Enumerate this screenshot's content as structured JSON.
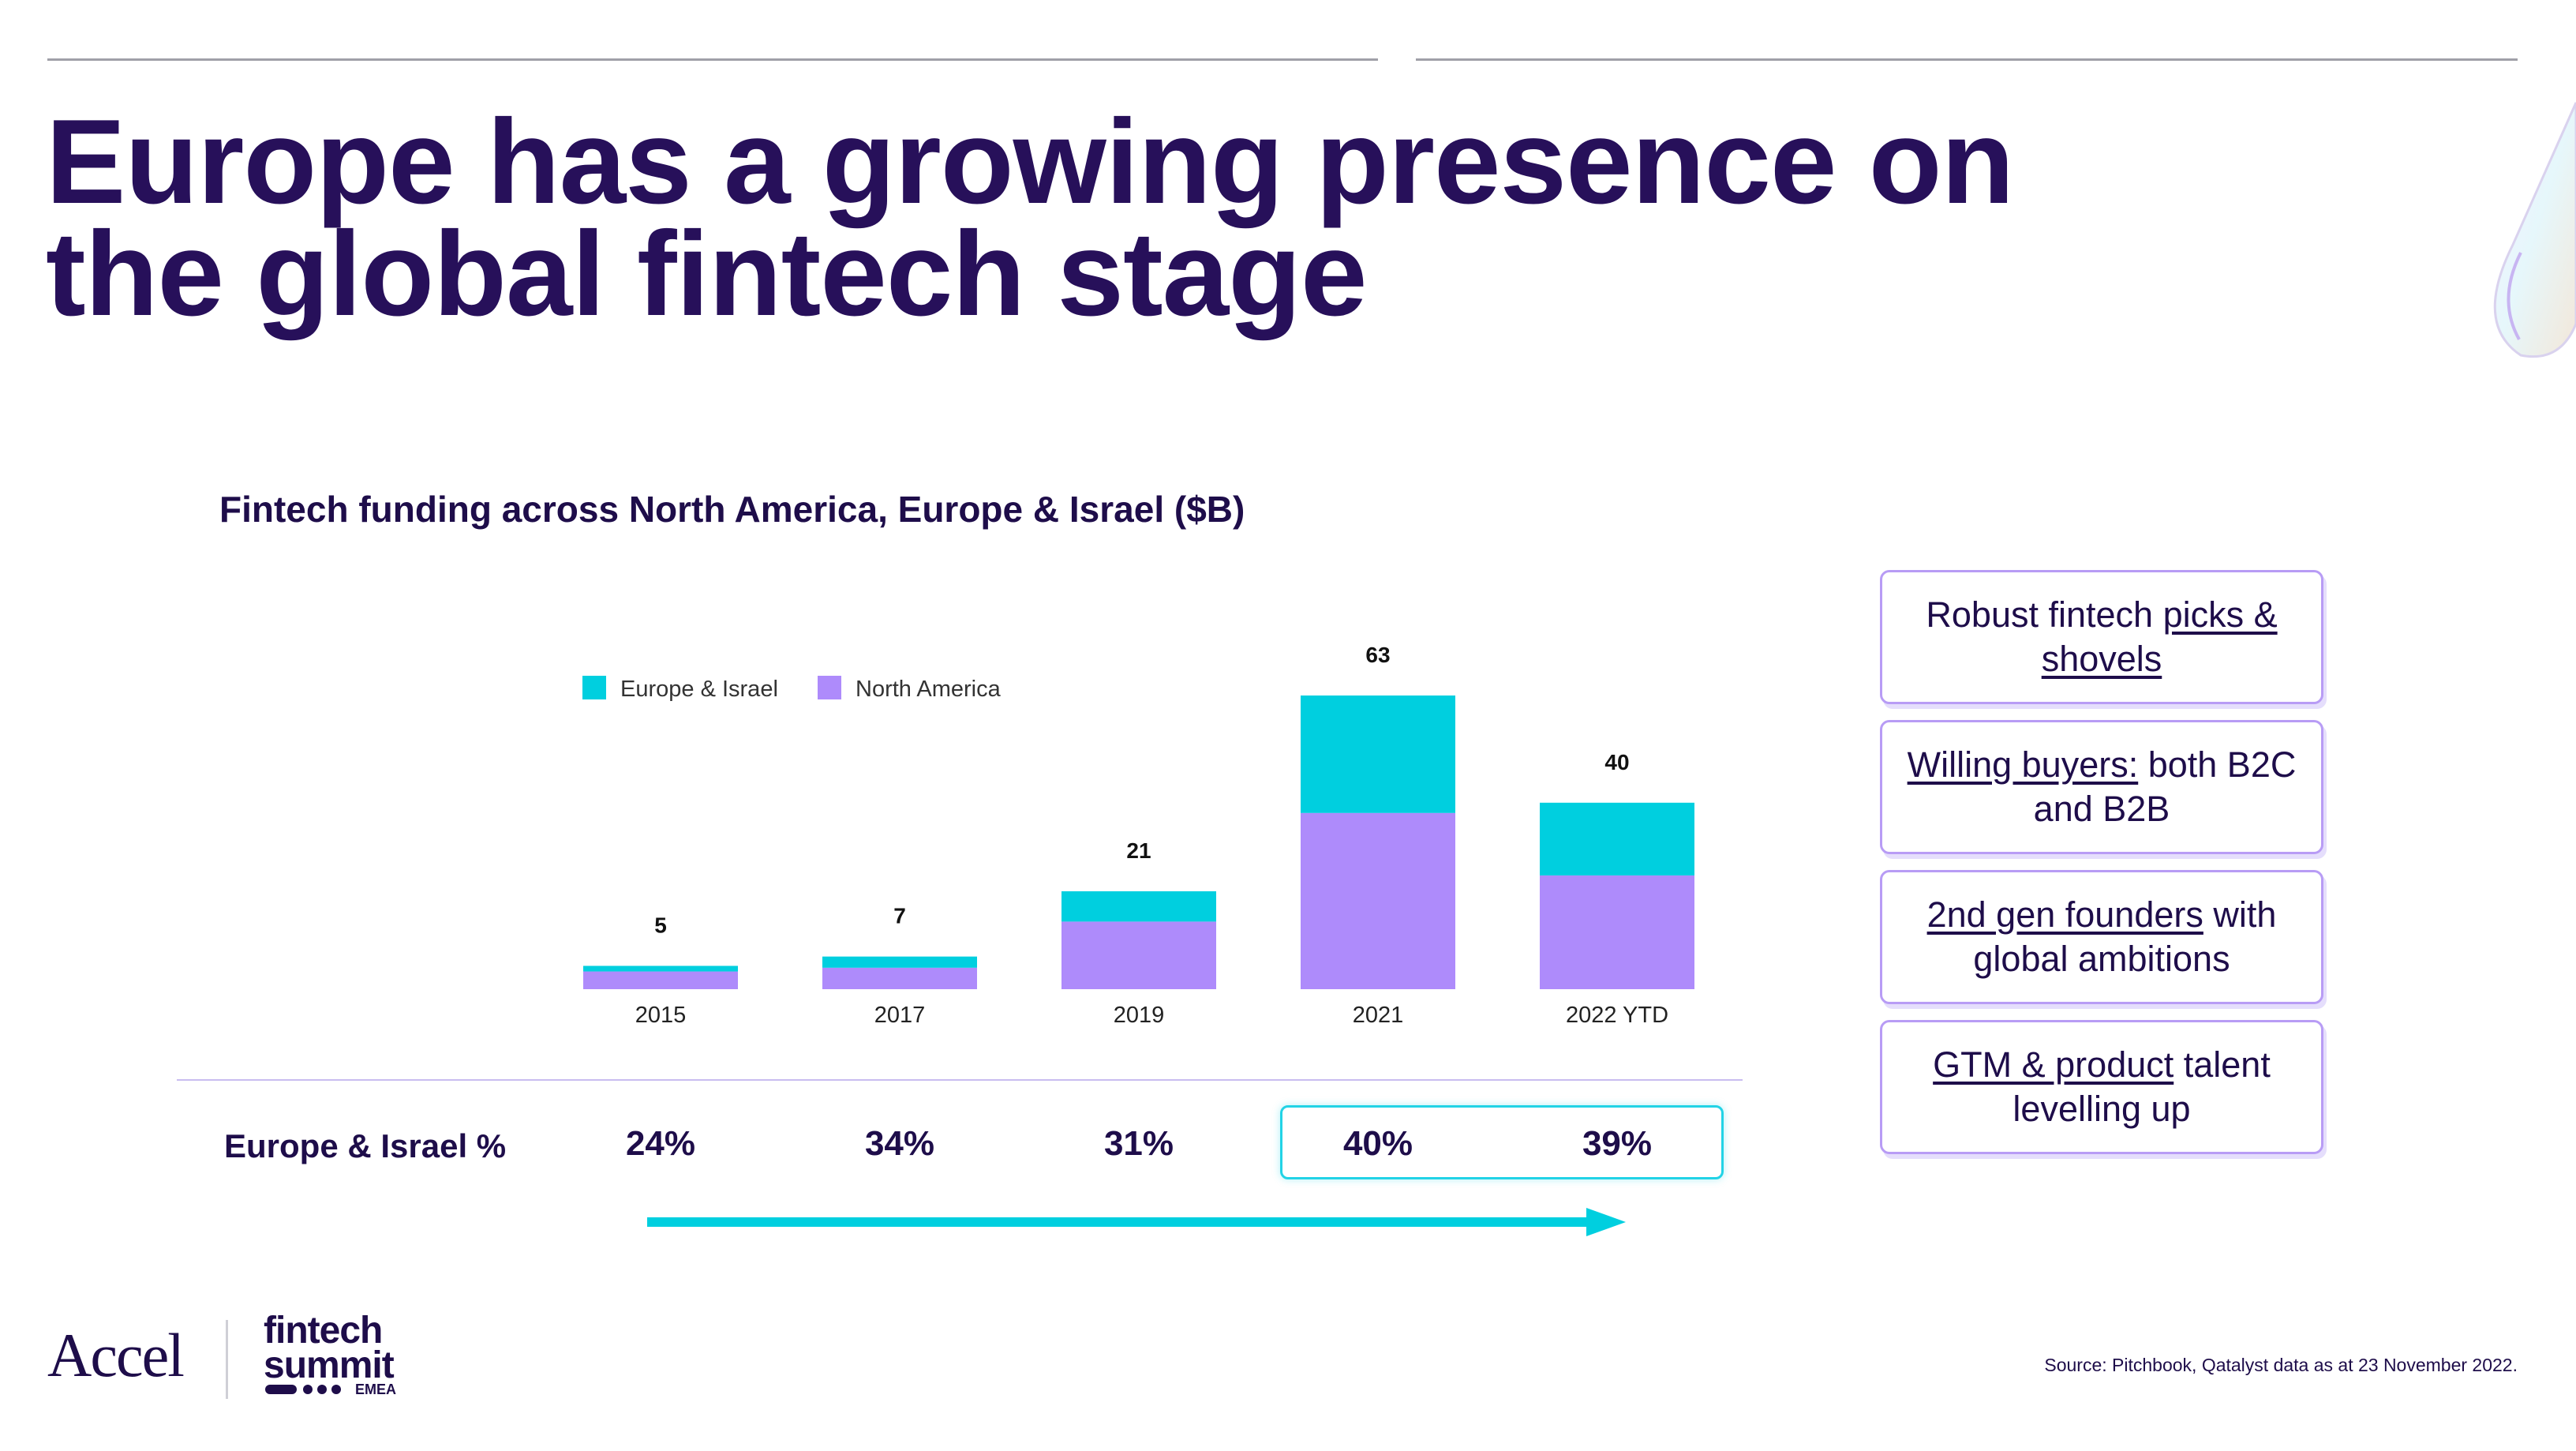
{
  "title": {
    "line1": "Europe has a growing presence on",
    "line2": "the global fintech stage"
  },
  "chart_data": {
    "type": "bar",
    "stacked": true,
    "title": "Fintech funding across North America, Europe & Israel ($B)",
    "categories": [
      "2015",
      "2017",
      "2019",
      "2021",
      "2022 YTD"
    ],
    "series": [
      {
        "name": "North America",
        "color": "#ae8bfb",
        "values": [
          3.8,
          4.6,
          14.5,
          37.8,
          24.4
        ]
      },
      {
        "name": "Europe & Israel",
        "color": "#00cfdf",
        "values": [
          1.2,
          2.4,
          6.5,
          25.2,
          15.6
        ]
      }
    ],
    "totals": [
      5,
      7,
      21,
      63,
      40
    ],
    "ylim": [
      0,
      63
    ],
    "legend": [
      {
        "name": "Europe & Israel",
        "color": "#00cfdf"
      },
      {
        "name": "North America",
        "color": "#ae8bfb"
      }
    ],
    "legend_position": "top-left",
    "grid": false
  },
  "share_row": {
    "label": "Europe & Israel %",
    "values": [
      "24%",
      "34%",
      "31%",
      "40%",
      "39%"
    ],
    "highlighted": [
      "40%",
      "39%"
    ]
  },
  "callouts": [
    {
      "plain_before": "Robust fintech ",
      "underlined": "picks & shovels",
      "plain_after": ""
    },
    {
      "plain_before": "",
      "underlined": "Willing buyers:",
      "plain_after": " both B2C and B2B"
    },
    {
      "plain_before": "",
      "underlined": "2nd gen founders",
      "plain_after": " with global ambitions"
    },
    {
      "plain_before": "",
      "underlined": "GTM & product",
      "plain_after": " talent levelling up"
    }
  ],
  "footer": {
    "accel_logo": "Accel",
    "summit_logo_line1": "fintech",
    "summit_logo_line2": "summit",
    "summit_logo_region": "EMEA",
    "source": "Source: Pitchbook, Qatalyst data as at 23 November 2022."
  },
  "colors": {
    "brand_purple": "#27105a",
    "accent_cyan": "#00cfdf",
    "accent_lavender": "#ae8bfb"
  }
}
